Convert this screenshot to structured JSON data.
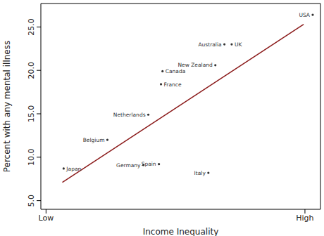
{
  "chart_data": {
    "type": "scatter",
    "x_label": "Income Inequality",
    "y_label": "Percent with any mental illness",
    "labels": [
      "Japan",
      "Belgium",
      "Germany",
      "Spain",
      "Netherlands",
      "France",
      "Canada",
      "New Zealand",
      "Australia",
      "UK",
      "Italy",
      "USA"
    ],
    "x": [
      0.68,
      2.37,
      3.76,
      4.36,
      3.95,
      4.44,
      4.5,
      6.54,
      6.89,
      7.17,
      6.27,
      10.3
    ],
    "values": [
      8.7,
      12.0,
      9.1,
      9.2,
      14.9,
      18.4,
      19.9,
      20.6,
      23.0,
      23.0,
      8.2,
      26.4
    ],
    "color": "#333333",
    "marker": "circle",
    "fit_line": {
      "x": [
        0.63,
        9.95
      ],
      "values": [
        7.1,
        25.3
      ],
      "color": "#8b1a1a"
    },
    "xlim": [
      -0.2,
      10.6
    ],
    "xticks": [
      {
        "value": 0,
        "label": "Low"
      },
      {
        "value": 10,
        "label": "High"
      }
    ],
    "ylim": [
      4.0,
      27.7
    ],
    "yticks": [
      {
        "value": 5,
        "label": "5.0"
      },
      {
        "value": 10,
        "label": "10.0"
      },
      {
        "value": 15,
        "label": "15.0"
      },
      {
        "value": 20,
        "label": "20.0"
      },
      {
        "value": 25,
        "label": "25.0"
      }
    ]
  }
}
